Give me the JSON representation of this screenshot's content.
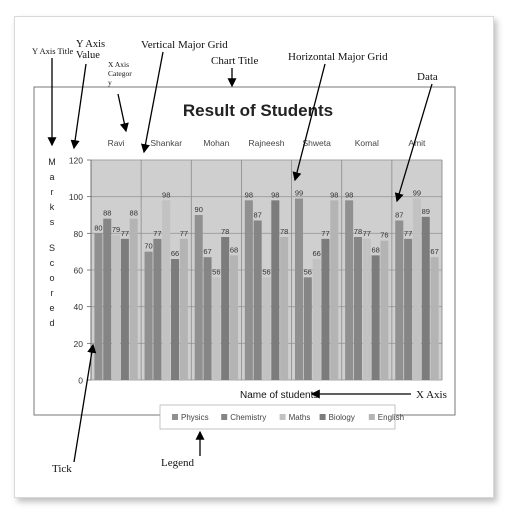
{
  "annotations": {
    "y_axis_title": "Y Axis Title",
    "y_axis_value": "Y Axis Value",
    "x_axis_category": "X Axis Category",
    "vertical_major_grid": "Vertical Major Grid",
    "chart_title": "Chart Title",
    "horizontal_major_grid": "Horizontal Major Grid",
    "data": "Data",
    "x_axis": "X Axis",
    "tick": "Tick",
    "legend": "Legend"
  },
  "chart_data": {
    "type": "bar",
    "title": "Result of Students",
    "xlabel": "Name of students",
    "ylabel": "Marks Scored",
    "ylim": [
      0,
      120
    ],
    "yticks": [
      0,
      20,
      40,
      60,
      80,
      100,
      120
    ],
    "categories": [
      "Ravi",
      "Shankar",
      "Mohan",
      "Rajneesh",
      "Shweta",
      "Komal",
      "Amit"
    ],
    "series": [
      {
        "name": "Physics",
        "values": [
          80,
          70,
          90,
          98,
          99,
          98,
          87
        ]
      },
      {
        "name": "Chemistry",
        "values": [
          88,
          77,
          67,
          87,
          56,
          78,
          77
        ]
      },
      {
        "name": "Maths",
        "values": [
          79,
          98,
          56,
          56,
          66,
          77,
          99
        ]
      },
      {
        "name": "Biology",
        "values": [
          77,
          66,
          78,
          98,
          77,
          68,
          89
        ]
      },
      {
        "name": "English",
        "values": [
          88,
          77,
          68,
          78,
          98,
          76,
          67
        ]
      }
    ],
    "colors": [
      "#909090",
      "#858585",
      "#c2c2c2",
      "#7c7c7c",
      "#b4b4b4"
    ],
    "grid": {
      "horizontal": true,
      "vertical": true
    },
    "legend_position": "bottom"
  }
}
